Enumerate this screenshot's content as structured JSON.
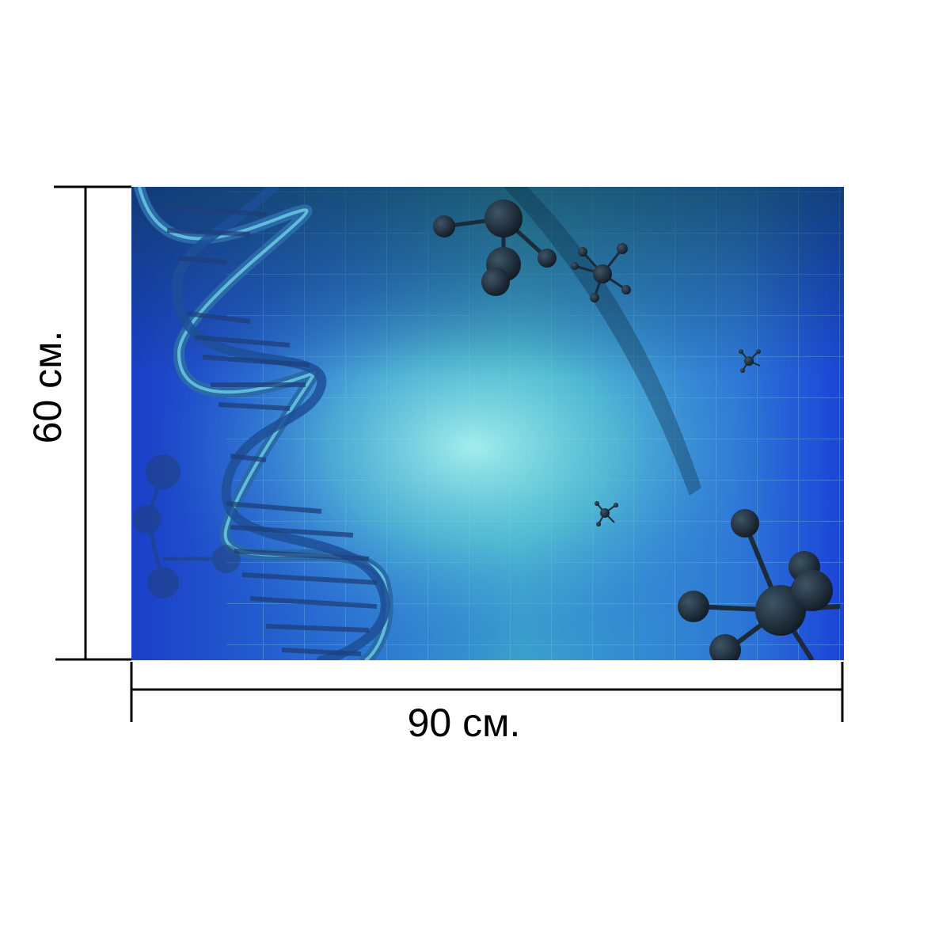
{
  "product": {
    "width_label": "90 см.",
    "height_label": "60 см."
  },
  "artwork": {
    "subject": "dna-double-helix-with-molecules",
    "colors": {
      "deep_blue": "#1a3fc8",
      "mid_blue": "#2a6fd6",
      "teal_glow": "#7fe0e6",
      "molecule": "#1c2a3a",
      "grid_line": "#5fb8d8"
    }
  },
  "dimension_color": "#000000"
}
